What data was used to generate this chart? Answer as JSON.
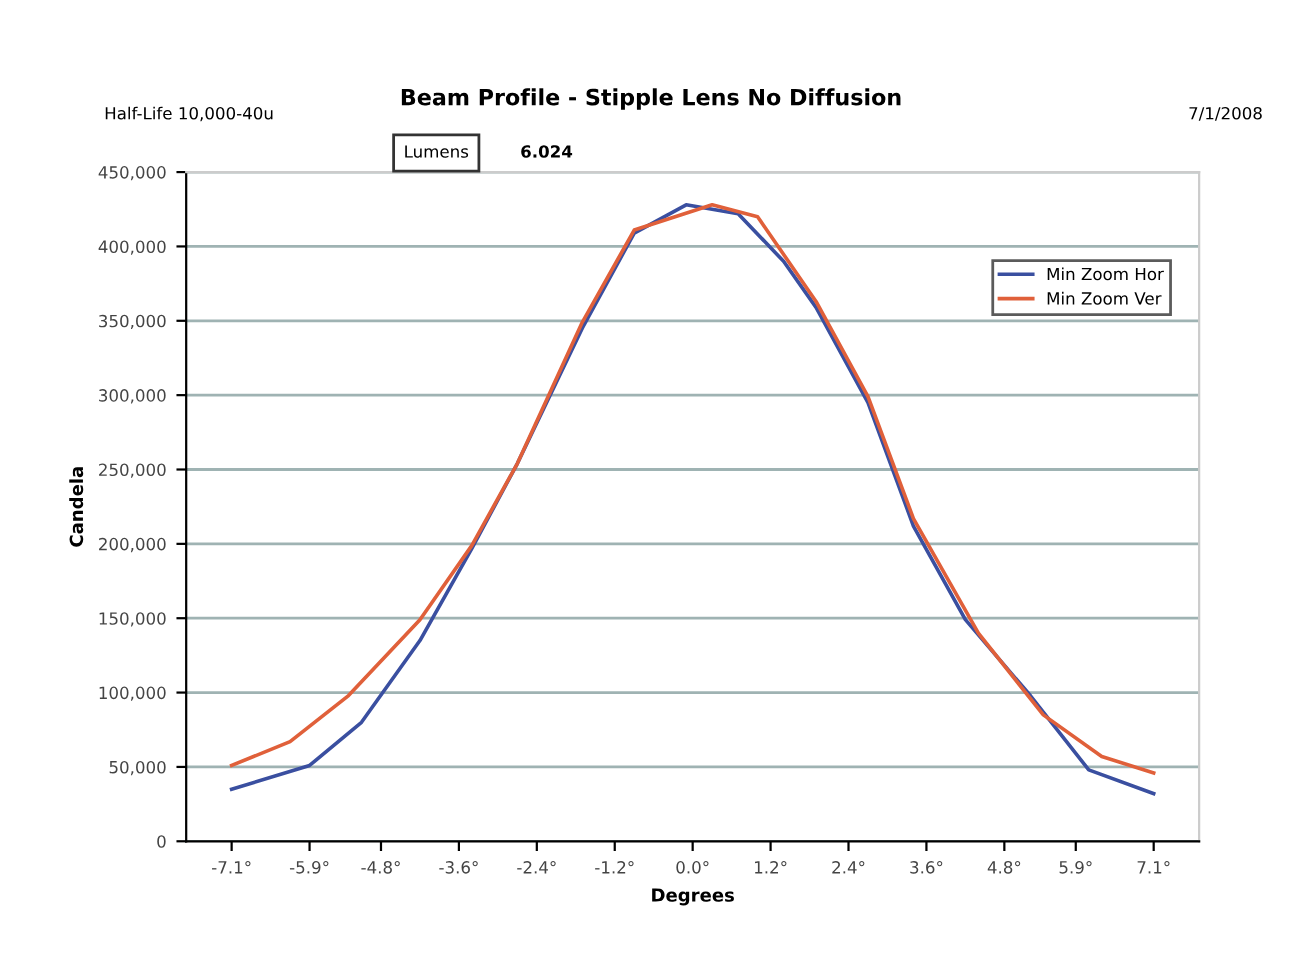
{
  "chart_data": {
    "type": "line",
    "title": "Beam Profile - Stipple Lens No Diffusion",
    "xlabel": "Degrees",
    "ylabel": "Candela",
    "annotations": [
      "Half-Life 10,000-40u",
      "7/1/2008",
      "Lumens",
      "6.024"
    ],
    "series": [
      {
        "name": "Min Zoom Hor",
        "color": "#3a4fa0",
        "x": [
          -7.1,
          -5.9,
          -5.1,
          -4.2,
          -3.4,
          -2.7,
          -1.7,
          -0.9,
          -0.1,
          0.7,
          1.4,
          1.9,
          2.7,
          3.4,
          4.2,
          5.2,
          6.1,
          7.1
        ],
        "values": [
          35000,
          51000,
          80000,
          135000,
          197000,
          254000,
          345000,
          409000,
          428000,
          422000,
          390000,
          359000,
          295000,
          212000,
          149000,
          98000,
          48000,
          32000
        ]
      },
      {
        "name": "Min Zoom Ver",
        "color": "#e0603a",
        "x": [
          -7.1,
          -6.2,
          -5.3,
          -4.2,
          -3.4,
          -2.7,
          -1.7,
          -0.9,
          0.3,
          1.0,
          1.9,
          2.7,
          3.4,
          4.4,
          5.4,
          6.3,
          7.1
        ],
        "values": [
          51000,
          67000,
          98000,
          149000,
          199000,
          254000,
          349000,
          411000,
          428000,
          420000,
          363000,
          299000,
          217000,
          140000,
          85000,
          57000,
          46000
        ]
      }
    ],
    "xlim": [
      -7.8,
      7.8
    ],
    "xticks": [
      {
        "value": -7.1,
        "label": "-7.1°"
      },
      {
        "value": -5.9,
        "label": "-5.9°"
      },
      {
        "value": -4.8,
        "label": "-4.8°"
      },
      {
        "value": -3.6,
        "label": "-3.6°"
      },
      {
        "value": -2.4,
        "label": "-2.4°"
      },
      {
        "value": -1.2,
        "label": "-1.2°"
      },
      {
        "value": 0.0,
        "label": "0.0°"
      },
      {
        "value": 1.2,
        "label": "1.2°"
      },
      {
        "value": 2.4,
        "label": "2.4°"
      },
      {
        "value": 3.6,
        "label": "3.6°"
      },
      {
        "value": 4.8,
        "label": "4.8°"
      },
      {
        "value": 5.9,
        "label": "5.9°"
      },
      {
        "value": 7.1,
        "label": "7.1°"
      }
    ],
    "ylim": [
      0,
      450000
    ],
    "yticks": [
      {
        "value": 0,
        "label": "0"
      },
      {
        "value": 50000,
        "label": "50,000"
      },
      {
        "value": 100000,
        "label": "100,000"
      },
      {
        "value": 150000,
        "label": "150,000"
      },
      {
        "value": 200000,
        "label": "200,000"
      },
      {
        "value": 250000,
        "label": "250,000"
      },
      {
        "value": 300000,
        "label": "300,000"
      },
      {
        "value": 350000,
        "label": "350,000"
      },
      {
        "value": 400000,
        "label": "400,000"
      },
      {
        "value": 450000,
        "label": "450,000"
      }
    ],
    "grid": "y",
    "legend": "top right",
    "marker": "none",
    "line_style": "solid"
  }
}
